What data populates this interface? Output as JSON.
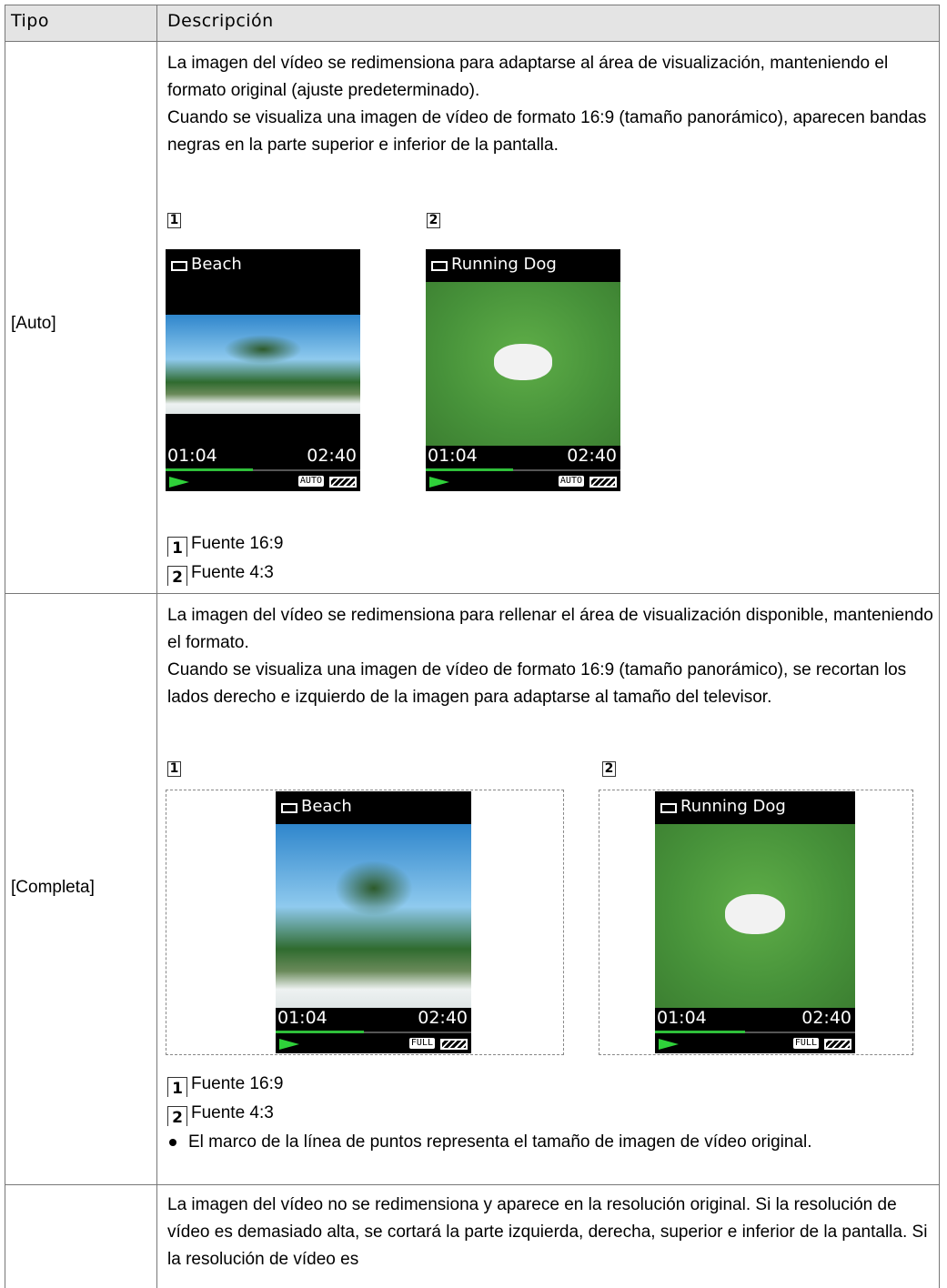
{
  "table": {
    "header": [
      "Tipo",
      "Descripción"
    ],
    "rows": [
      {
        "type": "[Auto]",
        "paragraphs": [
          "La imagen del vídeo se redimensiona para adaptarse al área de visualización, manteniendo el formato original (ajuste predeterminado).",
          "Cuando se visualiza una imagen de vídeo de formato 16:9 (tamaño panorámico), aparecen bandas negras en la parte superior e inferior de la pantalla."
        ],
        "figures": [
          {
            "marker": "1",
            "title": "Beach",
            "elapsed": "01:04",
            "total": "02:40",
            "mode": "AUTO"
          },
          {
            "marker": "2",
            "title": "Running Dog",
            "elapsed": "01:04",
            "total": "02:40",
            "mode": "AUTO"
          }
        ],
        "captions": [
          {
            "marker": "1",
            "text": "Fuente 16:9"
          },
          {
            "marker": "2",
            "text": "Fuente 4:3"
          }
        ]
      },
      {
        "type": "[Completa]",
        "paragraphs": [
          "La imagen del vídeo se redimensiona para rellenar el área de visualización disponible, manteniendo el formato.",
          "Cuando se visualiza una imagen de vídeo de formato 16:9 (tamaño panorámico), se recortan los lados derecho e izquierdo de la imagen para adaptarse al tamaño del televisor."
        ],
        "figures": [
          {
            "marker": "1",
            "title": "Beach",
            "elapsed": "01:04",
            "total": "02:40",
            "mode": "FULL"
          },
          {
            "marker": "2",
            "title": "Running Dog",
            "elapsed": "01:04",
            "total": "02:40",
            "mode": "FULL"
          }
        ],
        "captions": [
          {
            "marker": "1",
            "text": "Fuente 16:9"
          },
          {
            "marker": "2",
            "text": "Fuente 4:3"
          }
        ],
        "notes": [
          "El marco de la línea de puntos representa el tamaño de imagen de vídeo original."
        ]
      },
      {
        "paragraphs": [
          "La imagen del vídeo no se redimensiona y aparece en la resolución original. Si la resolución de vídeo es demasiado alta, se cortará la parte izquierda, derecha, superior e inferior de la pantalla. Si la resolución de vídeo es"
        ]
      }
    ]
  }
}
